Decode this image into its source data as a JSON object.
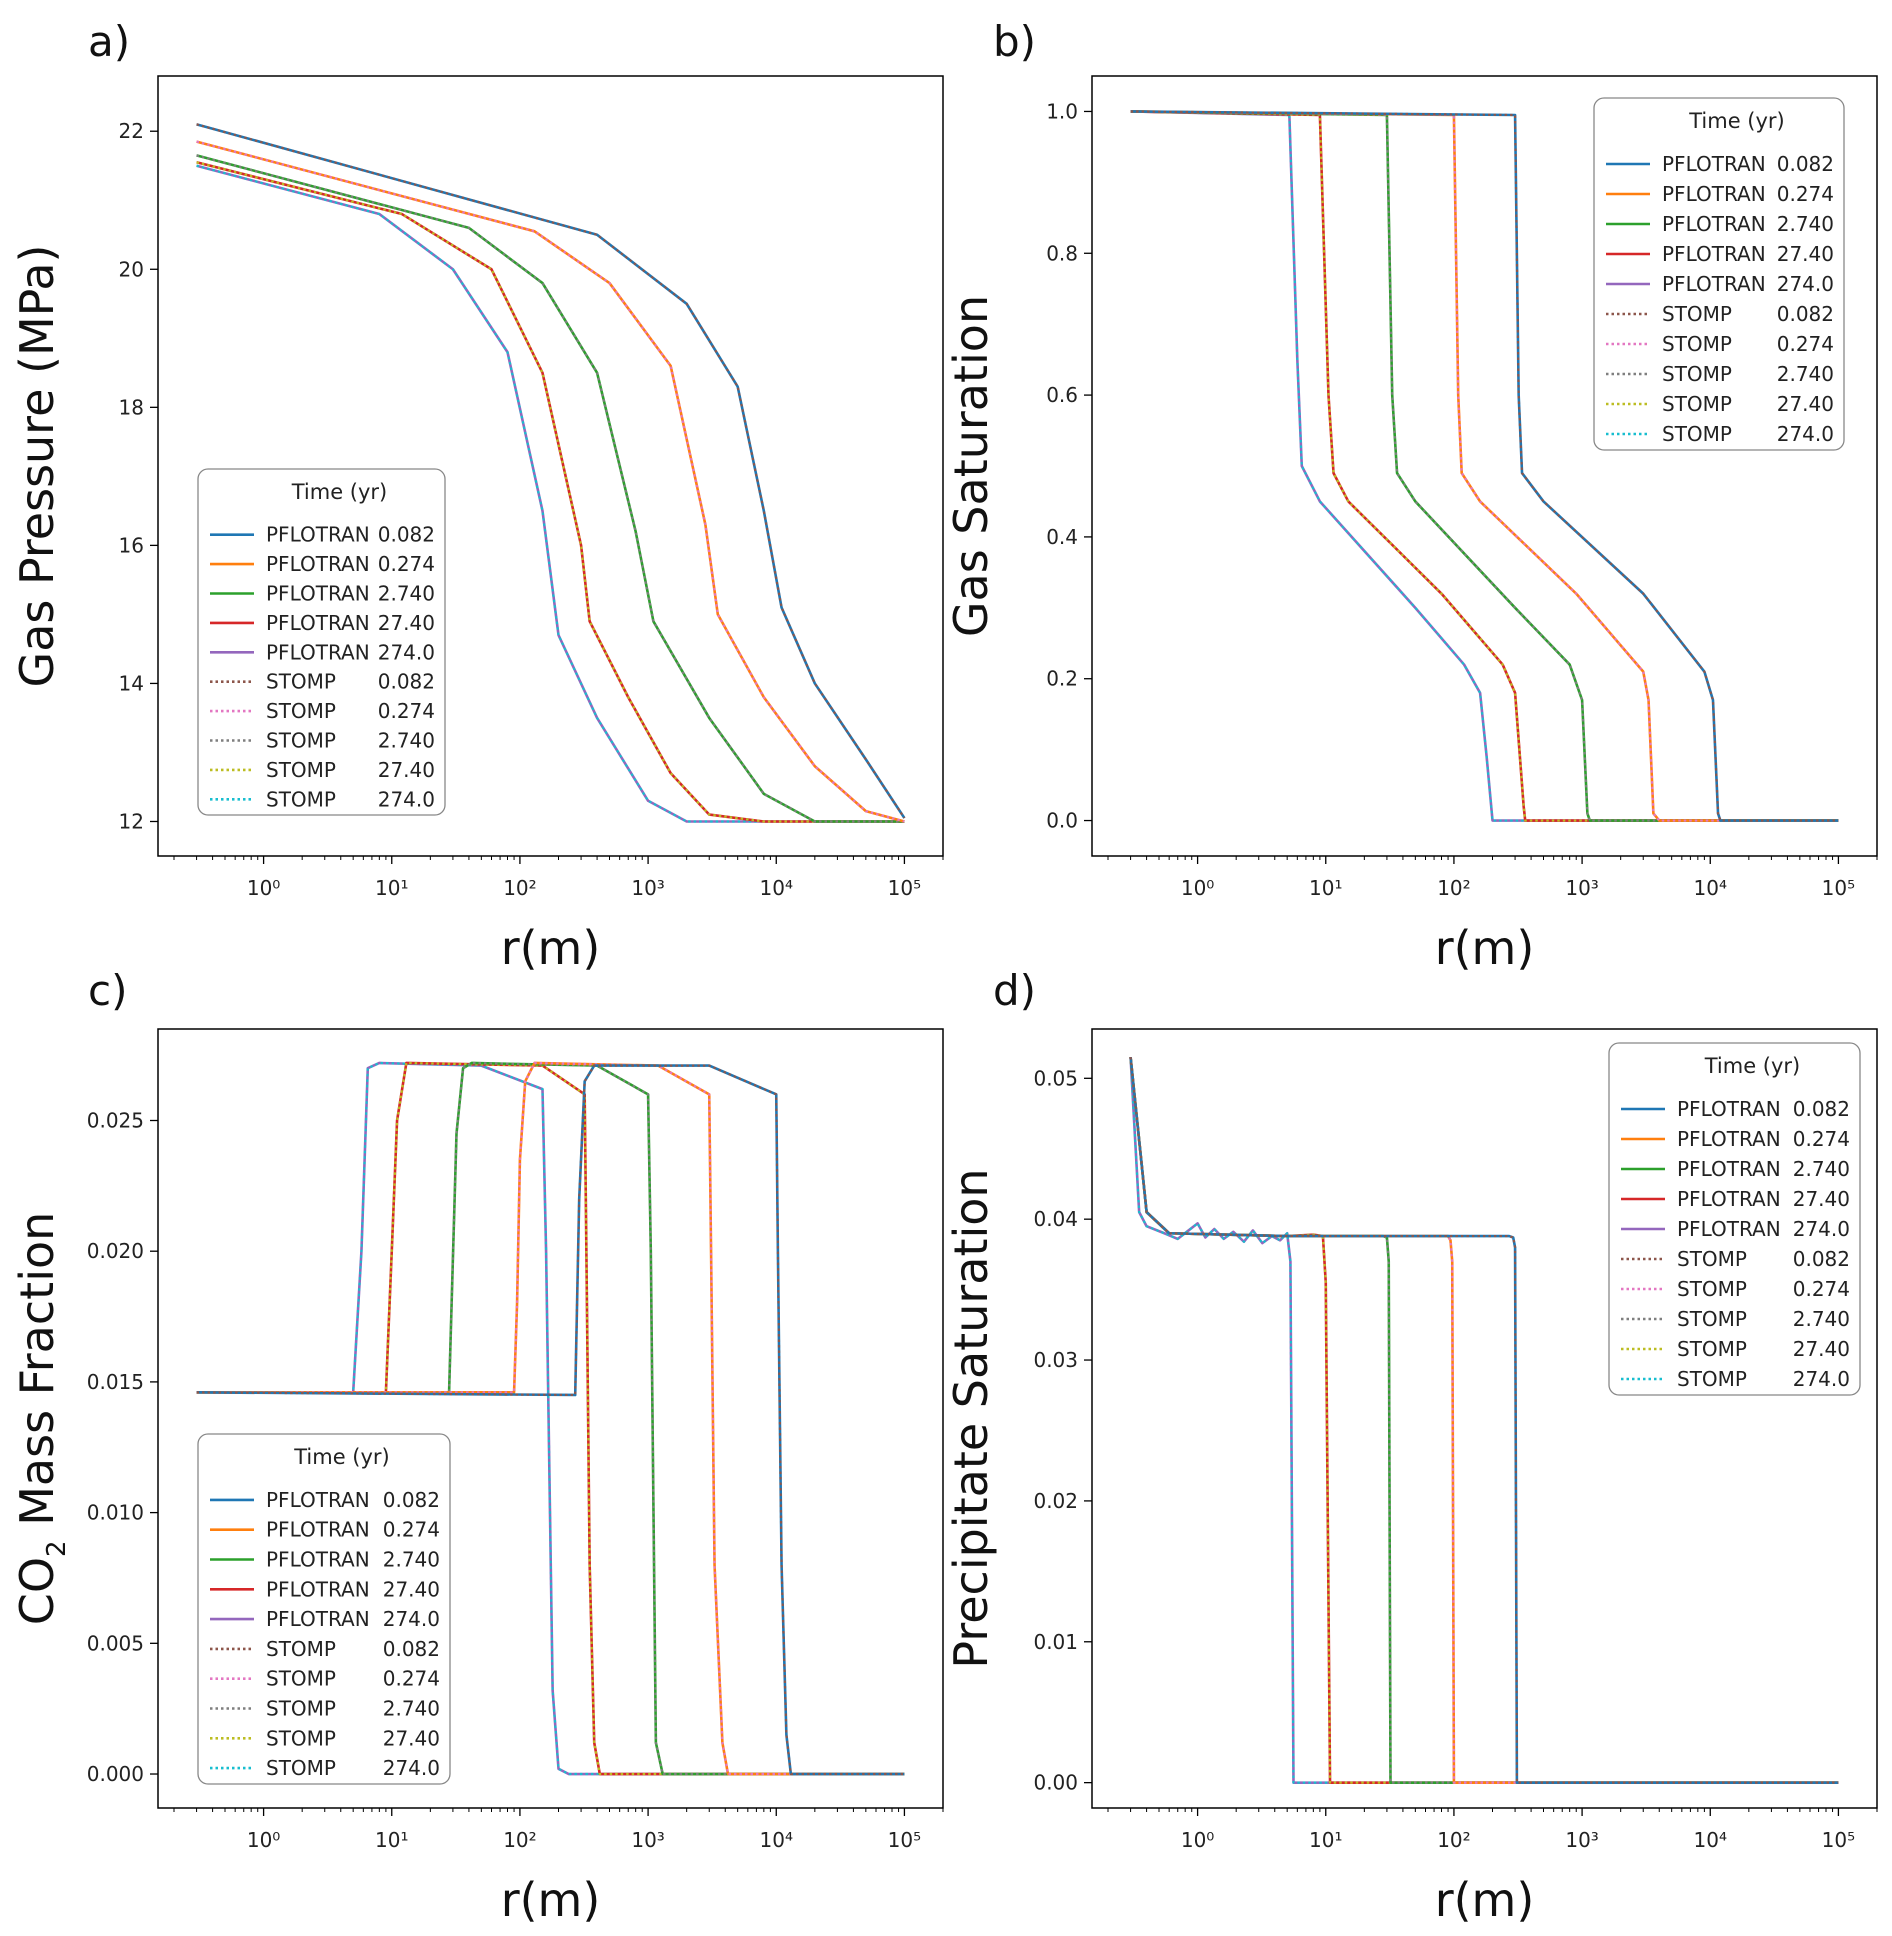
{
  "figure": {
    "series_meta": [
      {
        "name": "PFLOTRAN",
        "time": "0.082",
        "color": "#1f77b4",
        "dashed": false
      },
      {
        "name": "PFLOTRAN",
        "time": "0.274",
        "color": "#ff7f0e",
        "dashed": false
      },
      {
        "name": "PFLOTRAN",
        "time": "2.740",
        "color": "#2ca02c",
        "dashed": false
      },
      {
        "name": "PFLOTRAN",
        "time": "27.40",
        "color": "#d62728",
        "dashed": false
      },
      {
        "name": "PFLOTRAN",
        "time": "274.0",
        "color": "#9467bd",
        "dashed": false
      },
      {
        "name": "STOMP",
        "time": "0.082",
        "color": "#8c564b",
        "dashed": true
      },
      {
        "name": "STOMP",
        "time": "0.274",
        "color": "#e377c2",
        "dashed": true
      },
      {
        "name": "STOMP",
        "time": "2.740",
        "color": "#7f7f7f",
        "dashed": true
      },
      {
        "name": "STOMP",
        "time": "27.40",
        "color": "#bcbd22",
        "dashed": true
      },
      {
        "name": "STOMP",
        "time": "274.0",
        "color": "#17becf",
        "dashed": true
      }
    ]
  },
  "chart_data": [
    {
      "type": "line",
      "panel_label": "a)",
      "xlabel": "r(m)",
      "ylabel": "Gas Pressure (MPa)",
      "xscale": "log",
      "xlim": [
        0.15,
        200000
      ],
      "ylim": [
        11.5,
        22.8
      ],
      "xticks": [
        1,
        10,
        100,
        1000,
        10000,
        100000
      ],
      "yticks": [
        12,
        14,
        16,
        18,
        20,
        22
      ],
      "ytick_labels": [
        "12",
        "14",
        "16",
        "18",
        "20",
        "22"
      ],
      "legend_title": "Time (yr)",
      "legend_loc": "lower-left",
      "series": [
        {
          "name": "PFLOTRAN 274.0",
          "x": [
            0.3,
            8,
            30,
            80,
            150,
            200,
            400,
            1000,
            2000,
            3000,
            100000
          ],
          "y": [
            21.5,
            20.8,
            20.0,
            18.8,
            16.5,
            14.7,
            13.5,
            12.3,
            12.0,
            12.0,
            12.0
          ]
        },
        {
          "name": "PFLOTRAN 27.40",
          "x": [
            0.3,
            12,
            60,
            150,
            300,
            350,
            700,
            1500,
            3000,
            8000,
            100000
          ],
          "y": [
            21.55,
            20.8,
            20.0,
            18.5,
            16.0,
            14.9,
            13.8,
            12.7,
            12.1,
            12.0,
            12.0
          ]
        },
        {
          "name": "PFLOTRAN 2.740",
          "x": [
            0.3,
            40,
            150,
            400,
            800,
            1100,
            3000,
            8000,
            20000,
            100000
          ],
          "y": [
            21.65,
            20.6,
            19.8,
            18.5,
            16.2,
            14.9,
            13.5,
            12.4,
            12.0,
            12.0
          ]
        },
        {
          "name": "PFLOTRAN 0.274",
          "x": [
            0.3,
            130,
            500,
            1500,
            2800,
            3500,
            8000,
            20000,
            50000,
            100000
          ],
          "y": [
            21.85,
            20.55,
            19.8,
            18.6,
            16.3,
            15.0,
            13.8,
            12.8,
            12.15,
            12.0
          ]
        },
        {
          "name": "PFLOTRAN 0.082",
          "x": [
            0.3,
            400,
            2000,
            5000,
            8000,
            11000,
            20000,
            50000,
            100000
          ],
          "y": [
            22.1,
            20.5,
            19.5,
            18.3,
            16.5,
            15.1,
            14.0,
            12.9,
            12.05
          ]
        }
      ]
    },
    {
      "type": "line",
      "panel_label": "b)",
      "xlabel": "r(m)",
      "ylabel": "Gas Saturation",
      "xscale": "log",
      "xlim": [
        0.15,
        200000
      ],
      "ylim": [
        -0.05,
        1.05
      ],
      "xticks": [
        1,
        10,
        100,
        1000,
        10000,
        100000
      ],
      "yticks": [
        0,
        0.2,
        0.4,
        0.6,
        0.8,
        1.0
      ],
      "ytick_labels": [
        "0.0",
        "0.2",
        "0.4",
        "0.6",
        "0.8",
        "1.0"
      ],
      "legend_title": "Time (yr)",
      "legend_loc": "upper-right",
      "series": [
        {
          "name": "PFLOTRAN 274.0",
          "x": [
            0.3,
            5.2,
            6.0,
            6.5,
            9,
            50,
            120,
            160,
            180,
            200,
            205,
            100000
          ],
          "y": [
            1.0,
            0.995,
            0.65,
            0.5,
            0.45,
            0.3,
            0.22,
            0.18,
            0.09,
            0.0,
            0.0,
            0.0
          ]
        },
        {
          "name": "PFLOTRAN 27.40",
          "x": [
            0.3,
            9,
            10.5,
            11.5,
            15,
            80,
            240,
            300,
            350,
            360,
            100000
          ],
          "y": [
            1.0,
            0.995,
            0.6,
            0.49,
            0.45,
            0.32,
            0.22,
            0.18,
            0.02,
            0.0,
            0.0
          ]
        },
        {
          "name": "PFLOTRAN 2.740",
          "x": [
            0.3,
            30,
            33,
            36,
            50,
            300,
            800,
            1000,
            1100,
            1150,
            100000
          ],
          "y": [
            1.0,
            0.995,
            0.6,
            0.49,
            0.45,
            0.3,
            0.22,
            0.17,
            0.01,
            0.0,
            0.0
          ]
        },
        {
          "name": "PFLOTRAN 0.274",
          "x": [
            0.3,
            100,
            108,
            115,
            160,
            900,
            3000,
            3300,
            3600,
            4000,
            100000
          ],
          "y": [
            1.0,
            0.995,
            0.6,
            0.49,
            0.45,
            0.32,
            0.21,
            0.17,
            0.01,
            0.0,
            0.0
          ]
        },
        {
          "name": "PFLOTRAN 0.082",
          "x": [
            0.3,
            300,
            320,
            340,
            500,
            3000,
            9000,
            10500,
            11500,
            12000,
            100000
          ],
          "y": [
            1.0,
            0.995,
            0.6,
            0.49,
            0.45,
            0.32,
            0.21,
            0.17,
            0.01,
            0.0,
            0.0
          ]
        }
      ]
    },
    {
      "type": "line",
      "panel_label": "c)",
      "xlabel": "r(m)",
      "ylabel_main": "CO",
      "ylabel_sub": "2",
      "ylabel_tail": " Mass Fraction",
      "xscale": "log",
      "xlim": [
        0.15,
        200000
      ],
      "ylim": [
        -0.0013,
        0.0285
      ],
      "xticks": [
        1,
        10,
        100,
        1000,
        10000,
        100000
      ],
      "yticks": [
        0,
        0.005,
        0.01,
        0.015,
        0.02,
        0.025
      ],
      "ytick_labels": [
        "0.000",
        "0.005",
        "0.010",
        "0.015",
        "0.020",
        "0.025"
      ],
      "legend_title": "Time (yr)",
      "legend_loc": "lower-left",
      "series": [
        {
          "name": "PFLOTRAN 274.0",
          "x": [
            0.3,
            5,
            5.8,
            6.5,
            8,
            50,
            150,
            160,
            180,
            200,
            240,
            100000
          ],
          "y": [
            0.0146,
            0.0146,
            0.02,
            0.027,
            0.0272,
            0.0271,
            0.0262,
            0.02,
            0.0032,
            0.0002,
            0.0,
            0.0
          ]
        },
        {
          "name": "PFLOTRAN 27.40",
          "x": [
            0.3,
            9,
            10,
            11,
            13,
            150,
            320,
            330,
            350,
            380,
            420,
            100000
          ],
          "y": [
            0.0146,
            0.0146,
            0.02,
            0.025,
            0.0272,
            0.0271,
            0.026,
            0.02,
            0.008,
            0.0012,
            0.0,
            0.0
          ]
        },
        {
          "name": "PFLOTRAN 2.740",
          "x": [
            0.3,
            28,
            32,
            36,
            42,
            400,
            1000,
            1050,
            1150,
            1300,
            100000
          ],
          "y": [
            0.0146,
            0.0146,
            0.0245,
            0.027,
            0.0272,
            0.0271,
            0.026,
            0.02,
            0.0012,
            0.0,
            0.0
          ]
        },
        {
          "name": "PFLOTRAN 0.274",
          "x": [
            0.3,
            90,
            95,
            100,
            110,
            130,
            1200,
            3000,
            3100,
            3300,
            3800,
            4200,
            100000
          ],
          "y": [
            0.0146,
            0.0146,
            0.018,
            0.0235,
            0.0265,
            0.0272,
            0.0271,
            0.026,
            0.02,
            0.008,
            0.0012,
            0.0,
            0.0
          ]
        },
        {
          "name": "PFLOTRAN 0.082",
          "x": [
            0.3,
            270,
            290,
            320,
            380,
            3000,
            10000,
            10300,
            11000,
            12000,
            13000,
            100000
          ],
          "y": [
            0.0146,
            0.0145,
            0.022,
            0.0265,
            0.0271,
            0.0271,
            0.026,
            0.02,
            0.008,
            0.0015,
            0.0,
            0.0
          ]
        }
      ]
    },
    {
      "type": "line",
      "panel_label": "d)",
      "xlabel": "r(m)",
      "ylabel": "Precipitate Saturation",
      "xscale": "log",
      "xlim": [
        0.15,
        200000
      ],
      "ylim": [
        -0.0018,
        0.0535
      ],
      "xticks": [
        1,
        10,
        100,
        1000,
        10000,
        100000
      ],
      "yticks": [
        0,
        0.01,
        0.02,
        0.03,
        0.04,
        0.05
      ],
      "ytick_labels": [
        "0.00",
        "0.01",
        "0.02",
        "0.03",
        "0.04",
        "0.05"
      ],
      "legend_title": "Time (yr)",
      "legend_loc": "upper-right",
      "series": [
        {
          "name": "PFLOTRAN 274.0",
          "x": [
            0.3,
            0.35,
            0.4,
            0.55,
            0.7,
            0.85,
            1.0,
            1.15,
            1.35,
            1.6,
            1.9,
            2.3,
            2.7,
            3.2,
            3.8,
            4.4,
            5.0,
            5.3,
            5.6,
            6.0,
            100000
          ],
          "y": [
            0.0515,
            0.0405,
            0.0395,
            0.039,
            0.0386,
            0.0392,
            0.0397,
            0.0387,
            0.0393,
            0.0386,
            0.0391,
            0.0384,
            0.0392,
            0.0383,
            0.0388,
            0.0385,
            0.039,
            0.037,
            0.0,
            0.0,
            0.0
          ]
        },
        {
          "name": "PFLOTRAN 27.40",
          "x": [
            0.3,
            0.4,
            0.6,
            5.0,
            8,
            9.5,
            10,
            10.8,
            100000
          ],
          "y": [
            0.0515,
            0.0405,
            0.039,
            0.0388,
            0.0389,
            0.0388,
            0.0355,
            0.0,
            0.0
          ]
        },
        {
          "name": "PFLOTRAN 2.740",
          "x": [
            0.3,
            0.4,
            0.6,
            5.0,
            28,
            30,
            31,
            32,
            100000
          ],
          "y": [
            0.0515,
            0.0405,
            0.039,
            0.0388,
            0.0388,
            0.0387,
            0.037,
            0.0,
            0.0
          ]
        },
        {
          "name": "PFLOTRAN 0.274",
          "x": [
            0.3,
            0.4,
            0.6,
            5.0,
            90,
            94,
            97,
            100,
            100000
          ],
          "y": [
            0.0515,
            0.0405,
            0.039,
            0.0388,
            0.0388,
            0.0385,
            0.037,
            0.0,
            0.0
          ]
        },
        {
          "name": "PFLOTRAN 0.082",
          "x": [
            0.3,
            0.4,
            0.6,
            5.0,
            270,
            290,
            300,
            310,
            100000
          ],
          "y": [
            0.0515,
            0.0405,
            0.039,
            0.0388,
            0.0388,
            0.0387,
            0.038,
            0.0,
            0.0
          ]
        }
      ]
    }
  ]
}
